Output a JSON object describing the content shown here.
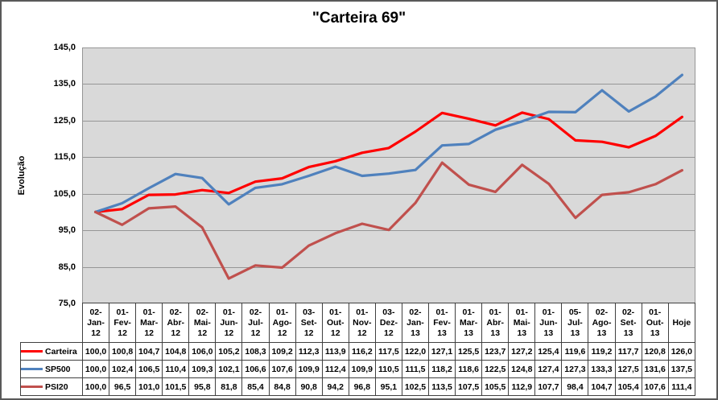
{
  "chart_data": {
    "type": "line",
    "title": "\"Carteira 69\"",
    "ylabel": "Evolução",
    "xlabel": "",
    "ylim": [
      75,
      145
    ],
    "ytick_step": 10,
    "yticklabels": [
      "145,0",
      "135,0",
      "125,0",
      "115,0",
      "105,0",
      "95,0",
      "85,0",
      "75,0"
    ],
    "grid": "horizontal-only",
    "legend_position": "data-table-left",
    "number_format": "decimal-comma-1",
    "plot_bg_color": "#D9D9D9",
    "gridline_color": "#969696",
    "table_border_color": "#404040",
    "categories": [
      "02-Jan-12",
      "01-Fev-12",
      "01-Mar-12",
      "02-Abr-12",
      "02-Mai-12",
      "01-Jun-12",
      "02-Jul-12",
      "01-Ago-12",
      "03-Set-12",
      "01-Out-12",
      "01-Nov-12",
      "03-Dez-12",
      "02-Jan-13",
      "01-Fev-13",
      "01-Mar-13",
      "01-Abr-13",
      "01-Mai-13",
      "01-Jun-13",
      "05-Jul-13",
      "02-Ago-13",
      "02-Set-13",
      "01-Out-13",
      "Hoje"
    ],
    "series": [
      {
        "name": "Carteira",
        "color": "#FF0000",
        "values": [
          100.0,
          100.8,
          104.7,
          104.8,
          106.0,
          105.2,
          108.3,
          109.2,
          112.3,
          113.9,
          116.2,
          117.5,
          122.0,
          127.1,
          125.5,
          123.7,
          127.2,
          125.4,
          119.6,
          119.2,
          117.7,
          120.8,
          126.0
        ]
      },
      {
        "name": "SP500",
        "color": "#4F81BD",
        "values": [
          100.0,
          102.4,
          106.5,
          110.4,
          109.3,
          102.1,
          106.6,
          107.6,
          109.9,
          112.4,
          109.9,
          110.5,
          111.5,
          118.2,
          118.6,
          122.5,
          124.8,
          127.4,
          127.3,
          133.3,
          127.5,
          131.6,
          137.5
        ]
      },
      {
        "name": "PSI20",
        "color": "#C0504D",
        "values": [
          100.0,
          96.5,
          101.0,
          101.5,
          95.8,
          81.8,
          85.4,
          84.8,
          90.8,
          94.2,
          96.8,
          95.1,
          102.5,
          113.5,
          107.5,
          105.5,
          112.9,
          107.7,
          98.4,
          104.7,
          105.4,
          107.6,
          111.4
        ]
      }
    ]
  }
}
